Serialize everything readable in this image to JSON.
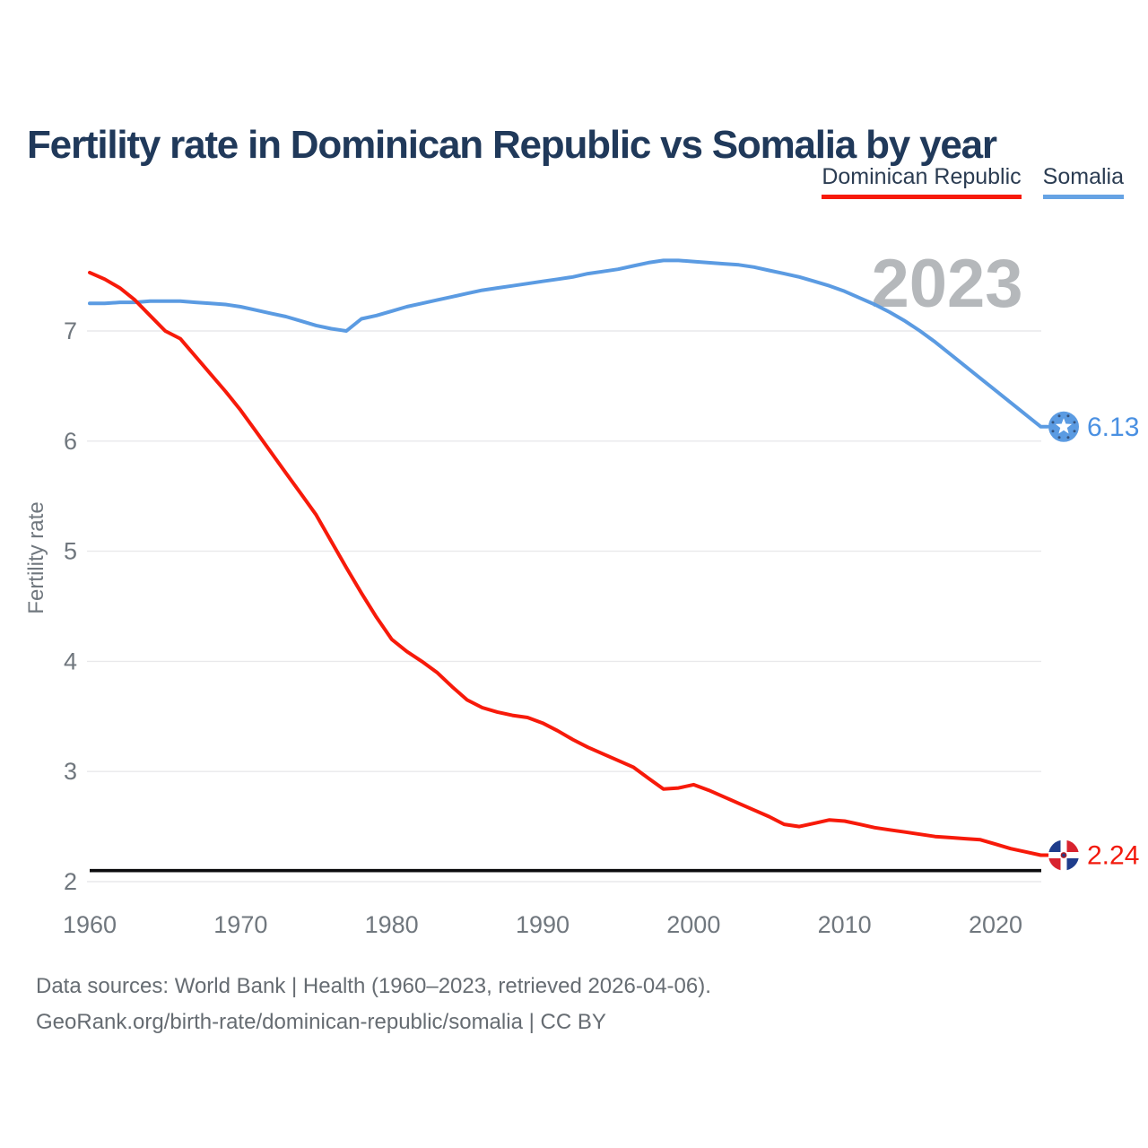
{
  "watermark_year": "2023",
  "footer": {
    "line1": "Data sources: World Bank | Health (1960–2023, retrieved 2026-04-06).",
    "line2": "GeoRank.org/birth-rate/dominican-republic/somalia | CC BY"
  },
  "chart_data": {
    "type": "line",
    "title": "Fertility rate in Dominican Republic vs Somalia by year",
    "xlabel": "",
    "ylabel": "Fertility rate",
    "x_start": 1960,
    "x_end": 2023,
    "xticks": [
      1960,
      1970,
      1980,
      1990,
      2000,
      2010,
      2020
    ],
    "yticks": [
      2,
      3,
      4,
      5,
      6,
      7
    ],
    "ylim": [
      2,
      7.75
    ],
    "grid": "horizontal",
    "gridline_color": "#e9e9eb",
    "tick_color": "#70777e",
    "legend_position": "top-right",
    "annotation": "2023",
    "annotation_color": "#b5b8bb",
    "reference_line_y": 2.1,
    "reference_line_color": "#0c0c0e",
    "series": [
      {
        "name": "Dominican Republic",
        "color": "#f71a0a",
        "value_color": "#f2190c",
        "icon": "dominican-republic-flag-icon",
        "end_label": "2.24",
        "values": [
          7.53,
          7.47,
          7.39,
          7.28,
          7.14,
          7.0,
          6.93,
          6.77,
          6.61,
          6.45,
          6.28,
          6.09,
          5.9,
          5.71,
          5.52,
          5.33,
          5.09,
          4.85,
          4.62,
          4.4,
          4.2,
          4.09,
          4.0,
          3.9,
          3.77,
          3.65,
          3.58,
          3.54,
          3.51,
          3.49,
          3.44,
          3.37,
          3.29,
          3.22,
          3.16,
          3.1,
          3.04,
          2.94,
          2.84,
          2.85,
          2.88,
          2.83,
          2.77,
          2.71,
          2.65,
          2.59,
          2.52,
          2.5,
          2.53,
          2.56,
          2.55,
          2.52,
          2.49,
          2.47,
          2.45,
          2.43,
          2.41,
          2.4,
          2.39,
          2.38,
          2.34,
          2.3,
          2.27,
          2.24
        ]
      },
      {
        "name": "Somalia",
        "color": "#5b9be2",
        "value_color": "#4a90e2",
        "icon": "somalia-flag-icon",
        "end_label": "6.13",
        "values": [
          7.25,
          7.25,
          7.26,
          7.26,
          7.27,
          7.27,
          7.27,
          7.26,
          7.25,
          7.24,
          7.22,
          7.19,
          7.16,
          7.13,
          7.09,
          7.05,
          7.02,
          7.0,
          7.11,
          7.14,
          7.18,
          7.22,
          7.25,
          7.28,
          7.31,
          7.34,
          7.37,
          7.39,
          7.41,
          7.43,
          7.45,
          7.47,
          7.49,
          7.52,
          7.54,
          7.56,
          7.59,
          7.62,
          7.64,
          7.64,
          7.63,
          7.62,
          7.61,
          7.6,
          7.58,
          7.55,
          7.52,
          7.49,
          7.45,
          7.41,
          7.36,
          7.3,
          7.24,
          7.17,
          7.09,
          7.0,
          6.9,
          6.79,
          6.68,
          6.57,
          6.46,
          6.35,
          6.24,
          6.13
        ]
      }
    ]
  }
}
